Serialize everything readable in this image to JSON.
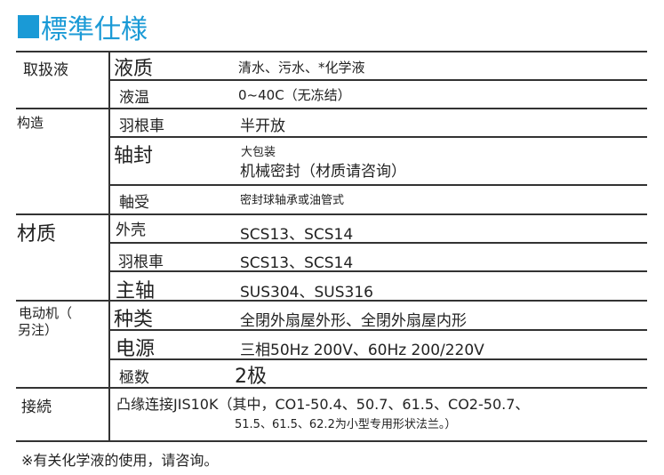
{
  "title": "標準仕様",
  "colors": {
    "accent": "#1a9ad6"
  },
  "groups": [
    {
      "label": "取扱液",
      "rows": [
        {
          "item": "液质",
          "value": "清水、污水、*化学液"
        },
        {
          "item": "液温",
          "value": "0~40C（无冻结）"
        }
      ]
    },
    {
      "label": "构造",
      "rows": [
        {
          "item": "羽根車",
          "value": "半开放"
        },
        {
          "item": "轴封",
          "value": "大包装",
          "value2": "机械密封（材质请咨询）"
        },
        {
          "item": "軸受",
          "value": "密封球轴承或油管式"
        }
      ]
    },
    {
      "label": "材质",
      "rows": [
        {
          "item": "外壳",
          "value": "SCS13、SCS14"
        },
        {
          "item": "羽根車",
          "value": "SCS13、SCS14"
        },
        {
          "item": "主轴",
          "value": "SUS304、SUS316"
        }
      ]
    },
    {
      "label": "电动机（",
      "label2": "另注）",
      "rows": [
        {
          "item": "种类",
          "value": "全閉外扇屋外形、全閉外扇屋内形"
        },
        {
          "item": "电源",
          "value": "三相50Hz 200V、60Hz 200/220V"
        },
        {
          "item": "極数",
          "value": "2极"
        }
      ]
    },
    {
      "label": "接続",
      "rows": [
        {
          "item": "凸缘连接JIS10K（其中，CO1-50.4、50.7、61.5、CO2-50.7、",
          "value": "51.5、61.5、62.2为小型专用形状法兰。）"
        }
      ]
    }
  ],
  "footnote": "※有关化学液的使用，请咨询。"
}
